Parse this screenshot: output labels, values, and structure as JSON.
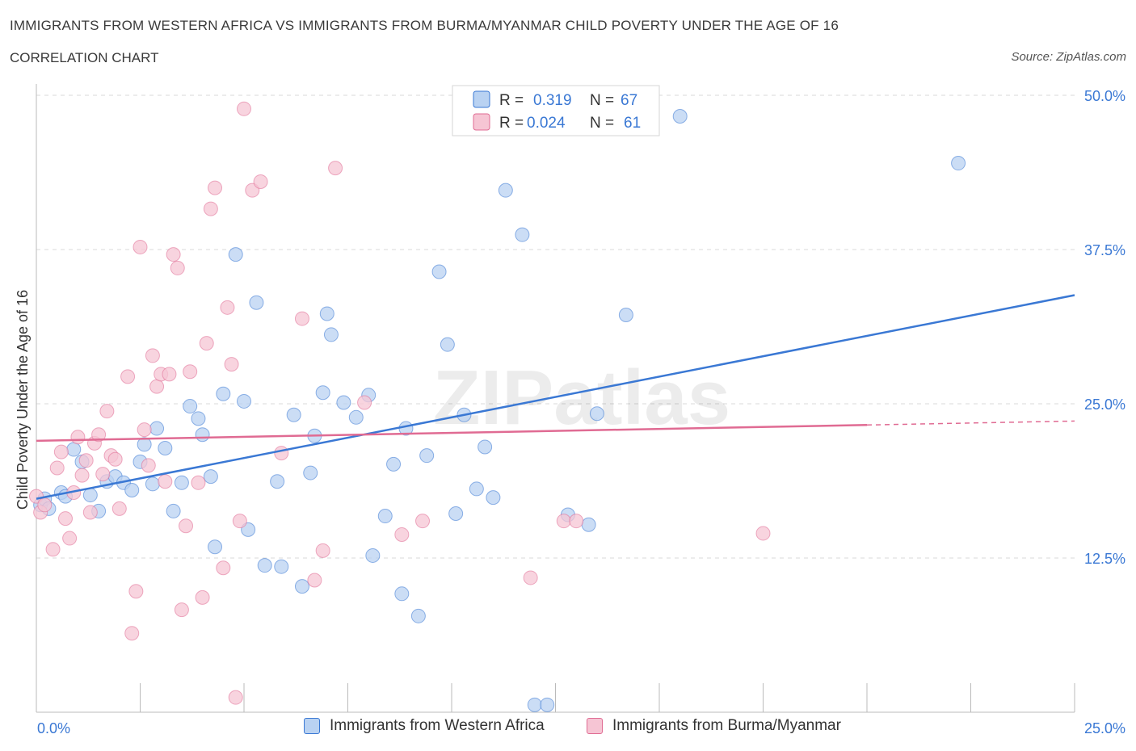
{
  "header": {
    "title": "IMMIGRANTS FROM WESTERN AFRICA VS IMMIGRANTS FROM BURMA/MYANMAR CHILD POVERTY UNDER THE AGE OF 16",
    "subtitle": "CORRELATION CHART",
    "source": "Source: ZipAtlas.com"
  },
  "watermark": "ZIPatlas",
  "colors": {
    "blue": "#3a78d4",
    "blue_fill": "#b9d2f2",
    "pink": "#e06b93",
    "pink_fill": "#f6c5d4",
    "axis_text": "#3a78d4",
    "grid": "#d9d9d9"
  },
  "chart_data": {
    "type": "scatter",
    "title": "IMMIGRANTS FROM WESTERN AFRICA VS IMMIGRANTS FROM BURMA/MYANMAR CHILD POVERTY UNDER THE AGE OF 16",
    "xlabel": "",
    "ylabel": "Child Poverty Under the Age of 16",
    "xlim": [
      0,
      25
    ],
    "ylim": [
      0,
      50
    ],
    "x_tick_labels": [
      "0.0%",
      "25.0%"
    ],
    "y_ticks": [
      12.5,
      25.0,
      37.5,
      50.0
    ],
    "y_tick_labels": [
      "12.5%",
      "25.0%",
      "37.5%",
      "50.0%"
    ],
    "grid": true,
    "legend_position": "top-center",
    "legend_stats": [
      {
        "r_label": "R =",
        "r_value": "0.319",
        "n_label": "N =",
        "n_value": "67"
      },
      {
        "r_label": "R =",
        "r_value": "0.024",
        "n_label": "N =",
        "n_value": "61"
      }
    ],
    "series": [
      {
        "name": "Immigrants from Western Africa",
        "color": "#3a78d4",
        "trend": {
          "x": [
            0,
            25
          ],
          "y": [
            17.3,
            33.8
          ],
          "dashed_from": null
        },
        "points": [
          [
            0.1,
            16.8
          ],
          [
            0.2,
            17.3
          ],
          [
            0.3,
            16.5
          ],
          [
            0.6,
            17.8
          ],
          [
            0.7,
            17.5
          ],
          [
            0.9,
            21.3
          ],
          [
            1.1,
            20.3
          ],
          [
            1.3,
            17.6
          ],
          [
            1.5,
            16.3
          ],
          [
            1.7,
            18.7
          ],
          [
            1.9,
            19.1
          ],
          [
            2.1,
            18.6
          ],
          [
            2.3,
            18.0
          ],
          [
            2.5,
            20.3
          ],
          [
            2.6,
            21.7
          ],
          [
            2.8,
            18.5
          ],
          [
            2.9,
            23.0
          ],
          [
            3.1,
            21.4
          ],
          [
            3.3,
            16.3
          ],
          [
            3.5,
            18.6
          ],
          [
            3.7,
            24.8
          ],
          [
            3.9,
            23.8
          ],
          [
            4.0,
            22.5
          ],
          [
            4.2,
            19.1
          ],
          [
            4.3,
            13.4
          ],
          [
            4.5,
            25.8
          ],
          [
            4.8,
            37.1
          ],
          [
            5.0,
            25.2
          ],
          [
            5.1,
            14.8
          ],
          [
            5.3,
            33.2
          ],
          [
            5.5,
            11.9
          ],
          [
            5.8,
            18.7
          ],
          [
            5.9,
            11.8
          ],
          [
            6.2,
            24.1
          ],
          [
            6.4,
            10.2
          ],
          [
            6.6,
            19.4
          ],
          [
            6.7,
            22.4
          ],
          [
            6.9,
            25.9
          ],
          [
            7.0,
            32.3
          ],
          [
            7.1,
            30.6
          ],
          [
            7.4,
            25.1
          ],
          [
            7.7,
            23.9
          ],
          [
            8.0,
            25.7
          ],
          [
            8.1,
            12.7
          ],
          [
            8.4,
            15.9
          ],
          [
            8.6,
            20.1
          ],
          [
            8.8,
            9.6
          ],
          [
            8.9,
            23.0
          ],
          [
            9.2,
            7.8
          ],
          [
            9.4,
            20.8
          ],
          [
            9.7,
            35.7
          ],
          [
            9.9,
            29.8
          ],
          [
            10.1,
            16.1
          ],
          [
            10.3,
            24.1
          ],
          [
            10.6,
            18.1
          ],
          [
            10.8,
            21.5
          ],
          [
            11.0,
            17.4
          ],
          [
            11.3,
            42.3
          ],
          [
            11.7,
            38.7
          ],
          [
            12.0,
            0.6
          ],
          [
            12.3,
            0.6
          ],
          [
            12.8,
            16.0
          ],
          [
            13.3,
            15.2
          ],
          [
            13.5,
            24.2
          ],
          [
            14.2,
            32.2
          ],
          [
            15.5,
            48.3
          ],
          [
            22.2,
            44.5
          ]
        ]
      },
      {
        "name": "Immigrants from Burma/Myanmar",
        "color": "#e06b93",
        "trend": {
          "x": [
            0,
            25
          ],
          "y": [
            22.0,
            23.6
          ],
          "dashed_from": 20.0
        },
        "points": [
          [
            0.0,
            17.5
          ],
          [
            0.1,
            16.2
          ],
          [
            0.2,
            16.8
          ],
          [
            0.4,
            13.2
          ],
          [
            0.5,
            19.8
          ],
          [
            0.6,
            21.1
          ],
          [
            0.7,
            15.7
          ],
          [
            0.8,
            14.1
          ],
          [
            0.9,
            17.8
          ],
          [
            1.0,
            22.3
          ],
          [
            1.1,
            19.2
          ],
          [
            1.2,
            20.4
          ],
          [
            1.3,
            16.2
          ],
          [
            1.4,
            21.8
          ],
          [
            1.5,
            22.5
          ],
          [
            1.6,
            19.3
          ],
          [
            1.7,
            24.4
          ],
          [
            1.8,
            20.8
          ],
          [
            1.9,
            20.5
          ],
          [
            2.0,
            16.5
          ],
          [
            2.2,
            27.2
          ],
          [
            2.3,
            6.4
          ],
          [
            2.4,
            9.8
          ],
          [
            2.5,
            37.7
          ],
          [
            2.6,
            22.9
          ],
          [
            2.7,
            20.0
          ],
          [
            2.8,
            28.9
          ],
          [
            2.9,
            26.4
          ],
          [
            3.0,
            27.4
          ],
          [
            3.1,
            18.7
          ],
          [
            3.2,
            27.4
          ],
          [
            3.3,
            37.1
          ],
          [
            3.4,
            36.0
          ],
          [
            3.5,
            8.3
          ],
          [
            3.6,
            15.1
          ],
          [
            3.7,
            27.6
          ],
          [
            3.9,
            18.6
          ],
          [
            4.0,
            9.3
          ],
          [
            4.1,
            29.9
          ],
          [
            4.2,
            40.8
          ],
          [
            4.3,
            42.5
          ],
          [
            4.5,
            11.7
          ],
          [
            4.6,
            32.8
          ],
          [
            4.7,
            28.2
          ],
          [
            4.8,
            1.2
          ],
          [
            4.9,
            15.5
          ],
          [
            5.0,
            48.9
          ],
          [
            5.2,
            42.3
          ],
          [
            5.4,
            43.0
          ],
          [
            5.9,
            21.0
          ],
          [
            6.4,
            31.9
          ],
          [
            6.7,
            10.7
          ],
          [
            6.9,
            13.1
          ],
          [
            7.2,
            44.1
          ],
          [
            7.9,
            25.1
          ],
          [
            8.8,
            14.4
          ],
          [
            9.3,
            15.5
          ],
          [
            11.9,
            10.9
          ],
          [
            12.7,
            15.5
          ],
          [
            13.0,
            15.5
          ],
          [
            17.5,
            14.5
          ]
        ]
      }
    ]
  }
}
